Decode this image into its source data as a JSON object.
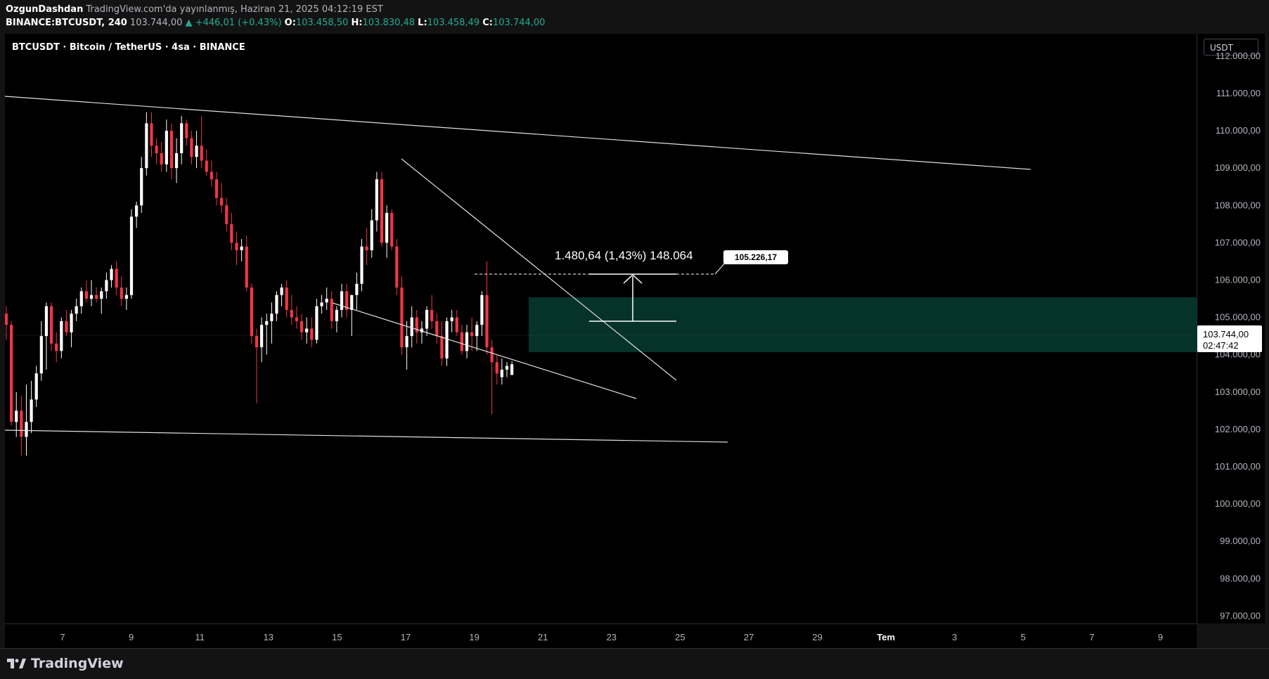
{
  "header": {
    "author": "OzgunDashdan",
    "published": "TradingView.com'da yayınlanmış, Haziran 21, 2025 04:12:19 EST",
    "symbol": "BINANCE:BTCUSDT, 240",
    "price": "103.744,00",
    "change": "▲ +446,01 (+0.43%)",
    "o_label": "O:",
    "o_value": "103.458,50",
    "h_label": "H:",
    "h_value": "103.830,48",
    "l_label": "L:",
    "l_value": "103.458,49",
    "c_label": "C:",
    "c_value": "103.744,00"
  },
  "chart_title": "BTCUSDT · Bitcoin / TetherUS · 4sa · BINANCE",
  "currency_button": "USDT",
  "last_price": {
    "value": "103.744,00",
    "countdown": "02:47:42"
  },
  "measure_label": "1.480,64 (1,43%) 148.064",
  "target_label": "105.226,17",
  "footer": {
    "brand": "TradingView"
  },
  "colors": {
    "up": "#ffffff",
    "down": "#f23645",
    "zone": "#05332a",
    "accent_up": "#22ab94"
  },
  "chart_data": {
    "type": "candlestick",
    "price_axis": [
      "112.000,00",
      "111.000,00",
      "110.000,00",
      "109.000,00",
      "108.000,00",
      "107.000,00",
      "106.000,00",
      "105.000,00",
      "104.000,00",
      "103.000,00",
      "102.000,00",
      "101.000,00",
      "100.000,00",
      "99.000,00",
      "98.000,00",
      "97.000,00"
    ],
    "time_axis": [
      "7",
      "9",
      "11",
      "13",
      "15",
      "17",
      "19",
      "21",
      "23",
      "25",
      "27",
      "29",
      "Tem",
      "3",
      "5",
      "7",
      "9"
    ],
    "ylim": [
      96800,
      112600
    ],
    "candles": [
      {
        "o": 105100,
        "h": 105300,
        "l": 104400,
        "c": 104800
      },
      {
        "o": 104800,
        "h": 104900,
        "l": 102100,
        "c": 102200
      },
      {
        "o": 102200,
        "h": 103000,
        "l": 101800,
        "c": 102500
      },
      {
        "o": 102500,
        "h": 102900,
        "l": 101300,
        "c": 101800
      },
      {
        "o": 101800,
        "h": 103200,
        "l": 101300,
        "c": 102200
      },
      {
        "o": 102200,
        "h": 103300,
        "l": 101900,
        "c": 102800
      },
      {
        "o": 102800,
        "h": 103700,
        "l": 102600,
        "c": 103500
      },
      {
        "o": 103500,
        "h": 104900,
        "l": 103300,
        "c": 104500
      },
      {
        "o": 104500,
        "h": 105400,
        "l": 103600,
        "c": 105300
      },
      {
        "o": 105300,
        "h": 105400,
        "l": 104100,
        "c": 104300
      },
      {
        "o": 104300,
        "h": 104600,
        "l": 103800,
        "c": 104100
      },
      {
        "o": 104100,
        "h": 105000,
        "l": 103900,
        "c": 104900
      },
      {
        "o": 104900,
        "h": 105200,
        "l": 104500,
        "c": 104600
      },
      {
        "o": 104600,
        "h": 105200,
        "l": 104200,
        "c": 105100
      },
      {
        "o": 105100,
        "h": 105500,
        "l": 104900,
        "c": 105300
      },
      {
        "o": 105300,
        "h": 105800,
        "l": 105100,
        "c": 105700
      },
      {
        "o": 105700,
        "h": 106000,
        "l": 105400,
        "c": 105500
      },
      {
        "o": 105500,
        "h": 106000,
        "l": 105300,
        "c": 105600
      },
      {
        "o": 105600,
        "h": 105800,
        "l": 105400,
        "c": 105500
      },
      {
        "o": 105500,
        "h": 105800,
        "l": 105100,
        "c": 105700
      },
      {
        "o": 105700,
        "h": 106200,
        "l": 105500,
        "c": 106000
      },
      {
        "o": 106000,
        "h": 106400,
        "l": 105800,
        "c": 106300
      },
      {
        "o": 106300,
        "h": 106500,
        "l": 105600,
        "c": 105800
      },
      {
        "o": 105800,
        "h": 106100,
        "l": 105300,
        "c": 105500
      },
      {
        "o": 105500,
        "h": 105800,
        "l": 105200,
        "c": 105600
      },
      {
        "o": 105600,
        "h": 107900,
        "l": 105500,
        "c": 107700
      },
      {
        "o": 107700,
        "h": 108100,
        "l": 107400,
        "c": 108000
      },
      {
        "o": 108000,
        "h": 109300,
        "l": 107800,
        "c": 109000
      },
      {
        "o": 109000,
        "h": 110500,
        "l": 108800,
        "c": 110200
      },
      {
        "o": 110200,
        "h": 110500,
        "l": 109300,
        "c": 109600
      },
      {
        "o": 109600,
        "h": 109800,
        "l": 109100,
        "c": 109400
      },
      {
        "o": 109400,
        "h": 109700,
        "l": 108900,
        "c": 109100
      },
      {
        "o": 109100,
        "h": 110300,
        "l": 108900,
        "c": 110000
      },
      {
        "o": 110000,
        "h": 110200,
        "l": 108700,
        "c": 109000
      },
      {
        "o": 109000,
        "h": 109800,
        "l": 108600,
        "c": 109400
      },
      {
        "o": 109400,
        "h": 110400,
        "l": 109100,
        "c": 110200
      },
      {
        "o": 110200,
        "h": 110300,
        "l": 109600,
        "c": 109800
      },
      {
        "o": 109800,
        "h": 110000,
        "l": 109100,
        "c": 109300
      },
      {
        "o": 109300,
        "h": 110000,
        "l": 109000,
        "c": 109600
      },
      {
        "o": 109600,
        "h": 110400,
        "l": 109000,
        "c": 109200
      },
      {
        "o": 109200,
        "h": 109500,
        "l": 108800,
        "c": 108900
      },
      {
        "o": 108900,
        "h": 109200,
        "l": 108500,
        "c": 108700
      },
      {
        "o": 108700,
        "h": 108900,
        "l": 108000,
        "c": 108200
      },
      {
        "o": 108200,
        "h": 108600,
        "l": 107800,
        "c": 108000
      },
      {
        "o": 108000,
        "h": 108200,
        "l": 107300,
        "c": 107500
      },
      {
        "o": 107500,
        "h": 107800,
        "l": 106800,
        "c": 107000
      },
      {
        "o": 107000,
        "h": 107300,
        "l": 106400,
        "c": 106800
      },
      {
        "o": 106800,
        "h": 107100,
        "l": 106500,
        "c": 106900
      },
      {
        "o": 106900,
        "h": 107200,
        "l": 105700,
        "c": 105800
      },
      {
        "o": 105800,
        "h": 105900,
        "l": 104300,
        "c": 104500
      },
      {
        "o": 104500,
        "h": 104700,
        "l": 102700,
        "c": 104200
      },
      {
        "o": 104200,
        "h": 105000,
        "l": 103800,
        "c": 104800
      },
      {
        "o": 104800,
        "h": 105100,
        "l": 104000,
        "c": 104900
      },
      {
        "o": 104900,
        "h": 105400,
        "l": 104300,
        "c": 105100
      },
      {
        "o": 105100,
        "h": 105700,
        "l": 104900,
        "c": 105600
      },
      {
        "o": 105600,
        "h": 105900,
        "l": 105300,
        "c": 105800
      },
      {
        "o": 105800,
        "h": 106000,
        "l": 105000,
        "c": 105200
      },
      {
        "o": 105200,
        "h": 105600,
        "l": 104800,
        "c": 105000
      },
      {
        "o": 105000,
        "h": 105300,
        "l": 104700,
        "c": 104900
      },
      {
        "o": 104900,
        "h": 105100,
        "l": 104400,
        "c": 104600
      },
      {
        "o": 104600,
        "h": 105000,
        "l": 104300,
        "c": 104700
      },
      {
        "o": 104700,
        "h": 105000,
        "l": 104200,
        "c": 104400
      },
      {
        "o": 104400,
        "h": 105500,
        "l": 104300,
        "c": 105300
      },
      {
        "o": 105300,
        "h": 105600,
        "l": 105100,
        "c": 105400
      },
      {
        "o": 105400,
        "h": 105800,
        "l": 105200,
        "c": 105500
      },
      {
        "o": 105500,
        "h": 105700,
        "l": 104700,
        "c": 104900
      },
      {
        "o": 104900,
        "h": 105300,
        "l": 104600,
        "c": 105200
      },
      {
        "o": 105200,
        "h": 105900,
        "l": 105000,
        "c": 105700
      },
      {
        "o": 105700,
        "h": 105900,
        "l": 105000,
        "c": 105200
      },
      {
        "o": 105200,
        "h": 105600,
        "l": 104500,
        "c": 105600
      },
      {
        "o": 105600,
        "h": 106200,
        "l": 105200,
        "c": 105900
      },
      {
        "o": 105900,
        "h": 107100,
        "l": 105700,
        "c": 106900
      },
      {
        "o": 106900,
        "h": 107400,
        "l": 106400,
        "c": 106800
      },
      {
        "o": 106800,
        "h": 107900,
        "l": 106600,
        "c": 107600
      },
      {
        "o": 107600,
        "h": 108900,
        "l": 107300,
        "c": 108700
      },
      {
        "o": 108700,
        "h": 108900,
        "l": 106900,
        "c": 107000
      },
      {
        "o": 107000,
        "h": 108000,
        "l": 106600,
        "c": 107800
      },
      {
        "o": 107800,
        "h": 107900,
        "l": 106800,
        "c": 106900
      },
      {
        "o": 106900,
        "h": 107100,
        "l": 105600,
        "c": 105800
      },
      {
        "o": 105800,
        "h": 106100,
        "l": 104000,
        "c": 104200
      },
      {
        "o": 104200,
        "h": 104900,
        "l": 103600,
        "c": 104500
      },
      {
        "o": 104500,
        "h": 105300,
        "l": 104200,
        "c": 105000
      },
      {
        "o": 105000,
        "h": 105200,
        "l": 104300,
        "c": 104600
      },
      {
        "o": 104600,
        "h": 104900,
        "l": 104300,
        "c": 104700
      },
      {
        "o": 104700,
        "h": 105300,
        "l": 104500,
        "c": 105200
      },
      {
        "o": 105200,
        "h": 105600,
        "l": 104700,
        "c": 104900
      },
      {
        "o": 104900,
        "h": 105100,
        "l": 104300,
        "c": 104500
      },
      {
        "o": 104500,
        "h": 104900,
        "l": 103700,
        "c": 103900
      },
      {
        "o": 103900,
        "h": 105000,
        "l": 103700,
        "c": 104900
      },
      {
        "o": 104900,
        "h": 105200,
        "l": 104600,
        "c": 105000
      },
      {
        "o": 105000,
        "h": 105200,
        "l": 104500,
        "c": 104600
      },
      {
        "o": 104600,
        "h": 104800,
        "l": 104000,
        "c": 104100
      },
      {
        "o": 104100,
        "h": 104800,
        "l": 103900,
        "c": 104600
      },
      {
        "o": 104600,
        "h": 105000,
        "l": 104100,
        "c": 104500
      },
      {
        "o": 104500,
        "h": 104900,
        "l": 104100,
        "c": 104800
      },
      {
        "o": 104800,
        "h": 105700,
        "l": 104500,
        "c": 105600
      },
      {
        "o": 105600,
        "h": 106500,
        "l": 104000,
        "c": 104200
      },
      {
        "o": 104200,
        "h": 104400,
        "l": 102400,
        "c": 103800
      },
      {
        "o": 103800,
        "h": 104000,
        "l": 103200,
        "c": 103500
      },
      {
        "o": 103400,
        "h": 103900,
        "l": 103200,
        "c": 103600
      },
      {
        "o": 103600,
        "h": 103800,
        "l": 103400,
        "c": 103700
      },
      {
        "o": 103458,
        "h": 103830,
        "l": 103458,
        "c": 103744
      }
    ]
  }
}
